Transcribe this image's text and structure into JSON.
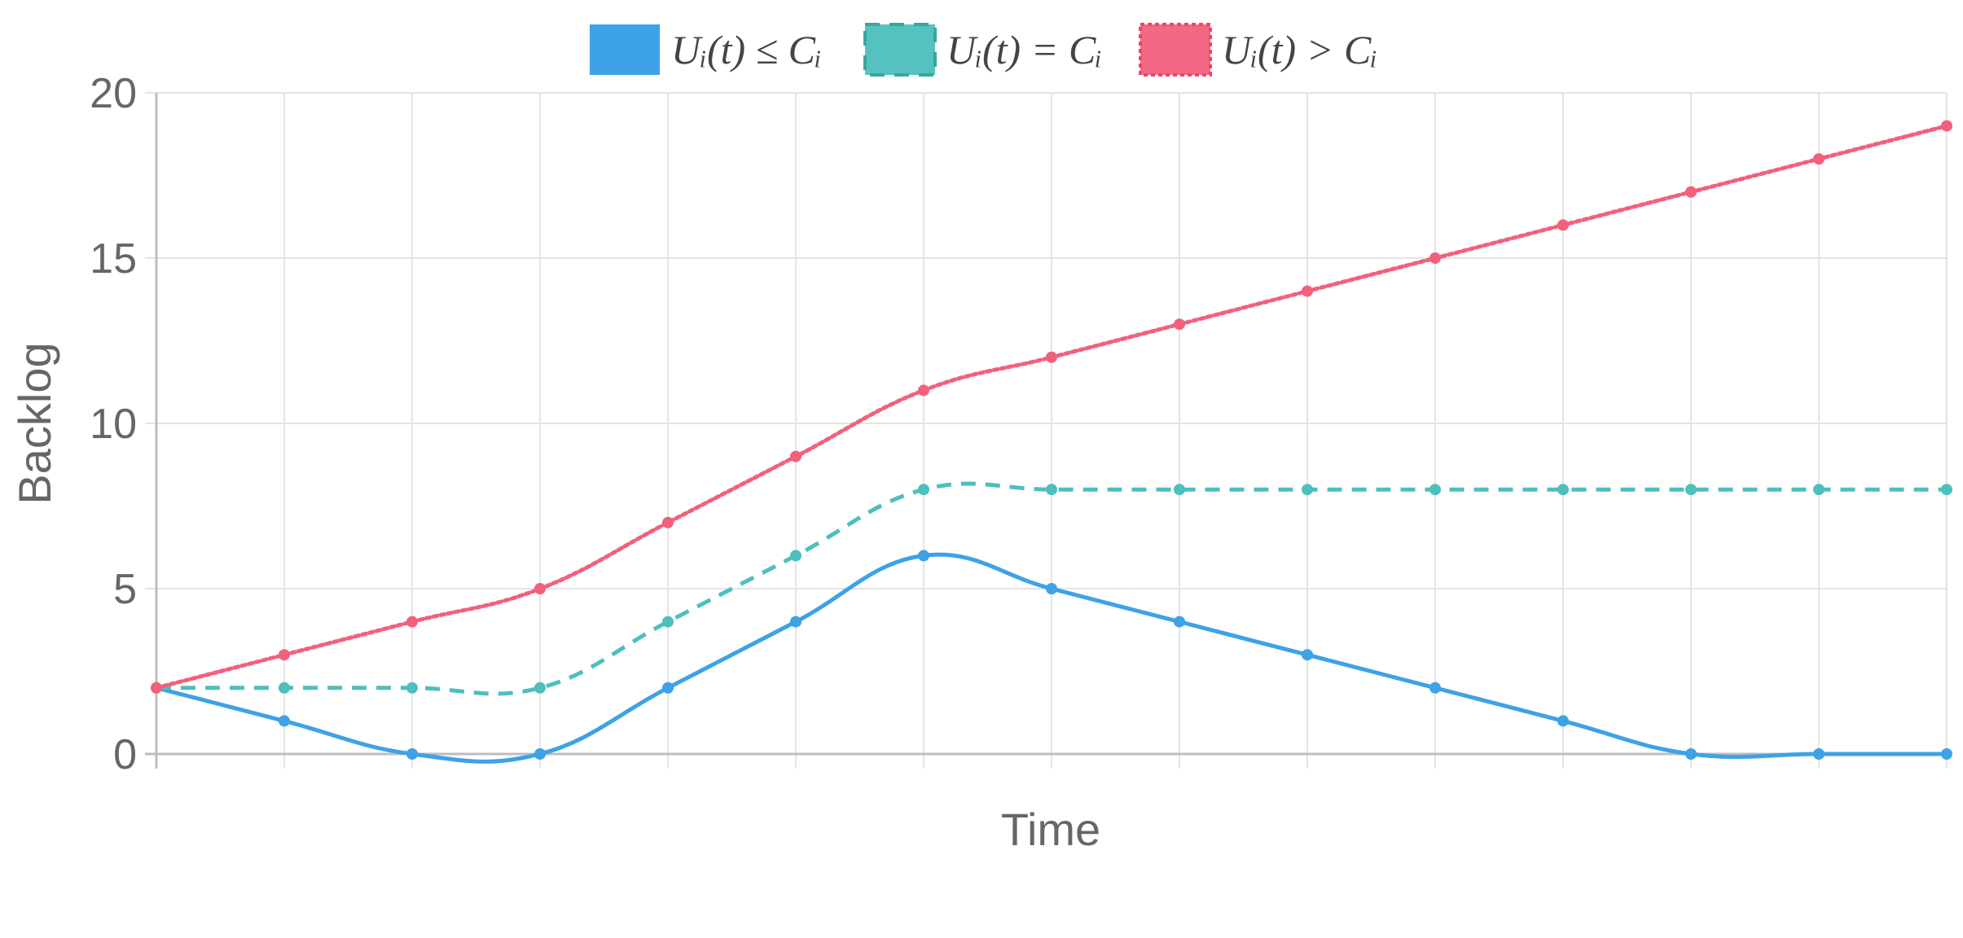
{
  "chart_data": {
    "type": "line",
    "xlabel": "Time",
    "ylabel": "Backlog",
    "ylim": [
      0,
      20
    ],
    "yticks": [
      "0",
      "5",
      "10",
      "15",
      "20"
    ],
    "grid": true,
    "legend_position": "top-center",
    "x": [
      0,
      1,
      2,
      3,
      4,
      5,
      6,
      7,
      8,
      9,
      10,
      11,
      12,
      13,
      14
    ],
    "series": [
      {
        "name": "Uᵢ(t) ≤ Cᵢ",
        "color": "#3da2e6",
        "style": "solid",
        "values": [
          2,
          1,
          0,
          0,
          2,
          4,
          6,
          5,
          4,
          3,
          2,
          1,
          0,
          0,
          0
        ]
      },
      {
        "name": "Uᵢ(t) = Cᵢ",
        "color": "#4dbfbd",
        "style": "dashed",
        "values": [
          2,
          2,
          2,
          2,
          4,
          6,
          8,
          8,
          8,
          8,
          8,
          8,
          8,
          8,
          8
        ]
      },
      {
        "name": "Uᵢ(t) > Cᵢ",
        "color": "#f2607c",
        "style": "dotted",
        "values": [
          2,
          3,
          4,
          5,
          7,
          9,
          11,
          12,
          13,
          14,
          15,
          16,
          17,
          18,
          19
        ]
      }
    ]
  }
}
